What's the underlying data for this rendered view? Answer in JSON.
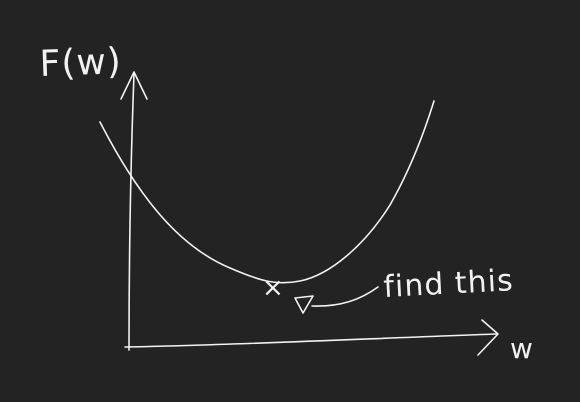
{
  "diagram": {
    "y_axis_label": "F(w)",
    "x_axis_label": "w",
    "minimum_marker": "×",
    "annotation": "find this",
    "colors": {
      "background": "#232323",
      "ink": "#f2f2f2"
    }
  }
}
